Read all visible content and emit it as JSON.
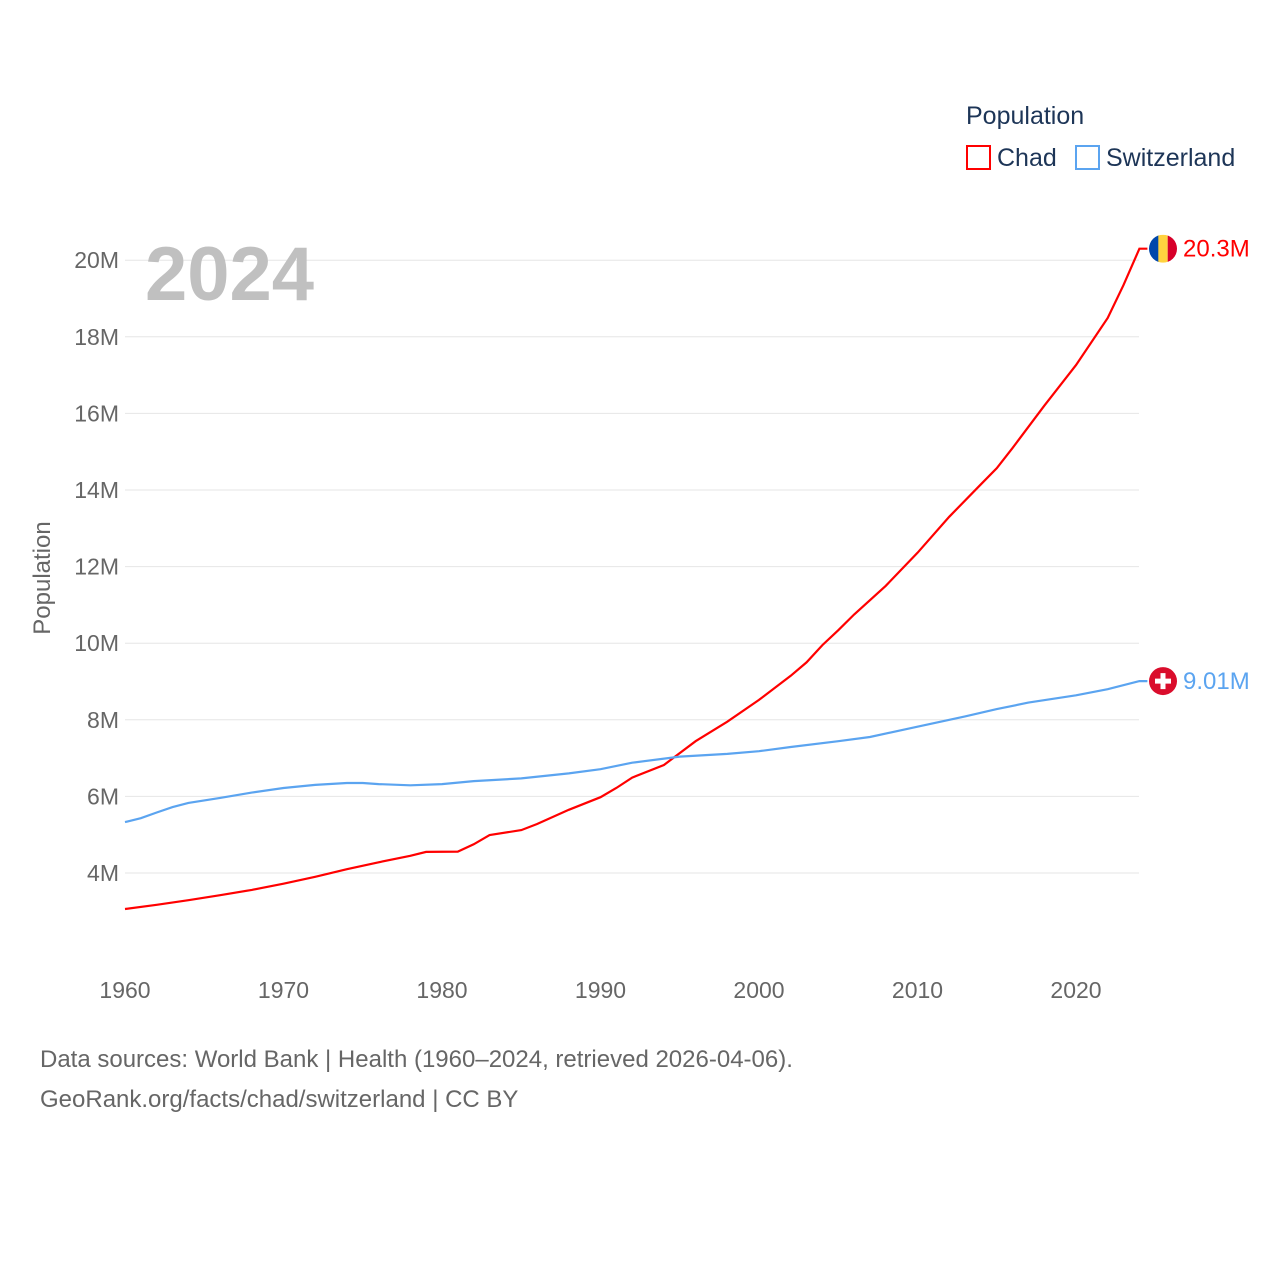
{
  "chart_data": {
    "type": "line",
    "year_label": "2024",
    "ylabel": "Population",
    "legend_title": "Population",
    "legend_position": "top-right",
    "ylim": [
      2,
      20.5
    ],
    "xlim": [
      1960,
      2024
    ],
    "y_ticks": [
      {
        "v": 4,
        "label": "4M"
      },
      {
        "v": 6,
        "label": "6M"
      },
      {
        "v": 8,
        "label": "8M"
      },
      {
        "v": 10,
        "label": "10M"
      },
      {
        "v": 12,
        "label": "12M"
      },
      {
        "v": 14,
        "label": "14M"
      },
      {
        "v": 16,
        "label": "16M"
      },
      {
        "v": 18,
        "label": "18M"
      },
      {
        "v": 20,
        "label": "20M"
      }
    ],
    "x_ticks": [
      {
        "v": 1960,
        "label": "1960"
      },
      {
        "v": 1970,
        "label": "1970"
      },
      {
        "v": 1980,
        "label": "1980"
      },
      {
        "v": 1990,
        "label": "1990"
      },
      {
        "v": 2000,
        "label": "2000"
      },
      {
        "v": 2010,
        "label": "2010"
      },
      {
        "v": 2020,
        "label": "2020"
      }
    ],
    "grid": true,
    "series": [
      {
        "name": "Chad",
        "color": "#ff0000",
        "end_label": "20.3M",
        "flag": "chad-flag",
        "points": [
          [
            1960,
            3.06
          ],
          [
            1962,
            3.17
          ],
          [
            1964,
            3.29
          ],
          [
            1966,
            3.42
          ],
          [
            1968,
            3.56
          ],
          [
            1970,
            3.72
          ],
          [
            1972,
            3.9
          ],
          [
            1974,
            4.1
          ],
          [
            1976,
            4.28
          ],
          [
            1978,
            4.45
          ],
          [
            1979,
            4.55
          ],
          [
            1981,
            4.56
          ],
          [
            1982,
            4.75
          ],
          [
            1983,
            4.99
          ],
          [
            1985,
            5.12
          ],
          [
            1986,
            5.28
          ],
          [
            1988,
            5.65
          ],
          [
            1990,
            5.98
          ],
          [
            1991,
            6.22
          ],
          [
            1992,
            6.49
          ],
          [
            1994,
            6.82
          ],
          [
            1996,
            7.44
          ],
          [
            1998,
            7.95
          ],
          [
            2000,
            8.52
          ],
          [
            2002,
            9.15
          ],
          [
            2003,
            9.5
          ],
          [
            2004,
            9.95
          ],
          [
            2005,
            10.34
          ],
          [
            2006,
            10.75
          ],
          [
            2008,
            11.5
          ],
          [
            2010,
            12.36
          ],
          [
            2012,
            13.3
          ],
          [
            2014,
            14.15
          ],
          [
            2015,
            14.57
          ],
          [
            2016,
            15.1
          ],
          [
            2018,
            16.2
          ],
          [
            2020,
            17.26
          ],
          [
            2022,
            18.49
          ],
          [
            2023,
            19.35
          ],
          [
            2024,
            20.3
          ]
        ]
      },
      {
        "name": "Switzerland",
        "color": "#5ba4f0",
        "end_label": "9.01M",
        "flag": "switzerland-flag",
        "points": [
          [
            1960,
            5.33
          ],
          [
            1961,
            5.43
          ],
          [
            1962,
            5.58
          ],
          [
            1963,
            5.72
          ],
          [
            1964,
            5.83
          ],
          [
            1966,
            5.96
          ],
          [
            1968,
            6.1
          ],
          [
            1970,
            6.22
          ],
          [
            1972,
            6.3
          ],
          [
            1974,
            6.35
          ],
          [
            1975,
            6.35
          ],
          [
            1976,
            6.32
          ],
          [
            1978,
            6.29
          ],
          [
            1980,
            6.32
          ],
          [
            1982,
            6.4
          ],
          [
            1985,
            6.47
          ],
          [
            1988,
            6.6
          ],
          [
            1990,
            6.71
          ],
          [
            1992,
            6.88
          ],
          [
            1995,
            7.04
          ],
          [
            1998,
            7.11
          ],
          [
            2000,
            7.18
          ],
          [
            2002,
            7.29
          ],
          [
            2005,
            7.44
          ],
          [
            2007,
            7.55
          ],
          [
            2010,
            7.82
          ],
          [
            2013,
            8.09
          ],
          [
            2015,
            8.28
          ],
          [
            2017,
            8.45
          ],
          [
            2020,
            8.64
          ],
          [
            2022,
            8.8
          ],
          [
            2024,
            9.01
          ]
        ]
      }
    ]
  },
  "footer": {
    "line1": "Data sources: World Bank | Health (1960–2024, retrieved 2026-04-06).",
    "line2": "GeoRank.org/facts/chad/switzerland | CC BY"
  }
}
